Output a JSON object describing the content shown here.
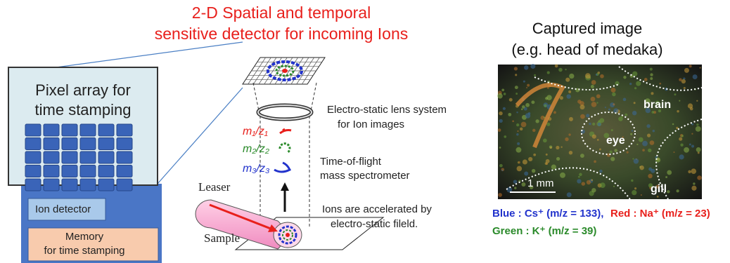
{
  "title": {
    "lines": [
      "2-D Spatial and temporal",
      "sensitive detector for incoming Ions"
    ]
  },
  "pixel_array": {
    "label": [
      "Pixel array for",
      "time stamping"
    ],
    "ion_detector": "Ion detector",
    "memory": [
      "Memory",
      "for time stamping"
    ]
  },
  "spectrometer": {
    "lens": [
      "Electro-static lens system",
      "for Ion images"
    ],
    "ions": [
      "m₁/z₁",
      "m₂/z₂",
      "m₃/z₃"
    ],
    "tof": [
      "Time-of-flight",
      "mass spectrometer"
    ],
    "laser": "Leaser",
    "sample": "Sample",
    "acceleration": [
      "Ions are accelerated by",
      "electro-static fileld."
    ]
  },
  "captured_image": {
    "title": [
      "Captured image",
      "(e.g. head of medaka)"
    ],
    "labels": [
      "brain",
      "eye",
      "gill"
    ],
    "scale": "1 mm"
  },
  "legend": [
    "Blue : Cs⁺ (m/z = 133),",
    "Red : Na⁺ (m/z = 23)",
    "Green : K⁺ (m/z = 39)"
  ]
}
